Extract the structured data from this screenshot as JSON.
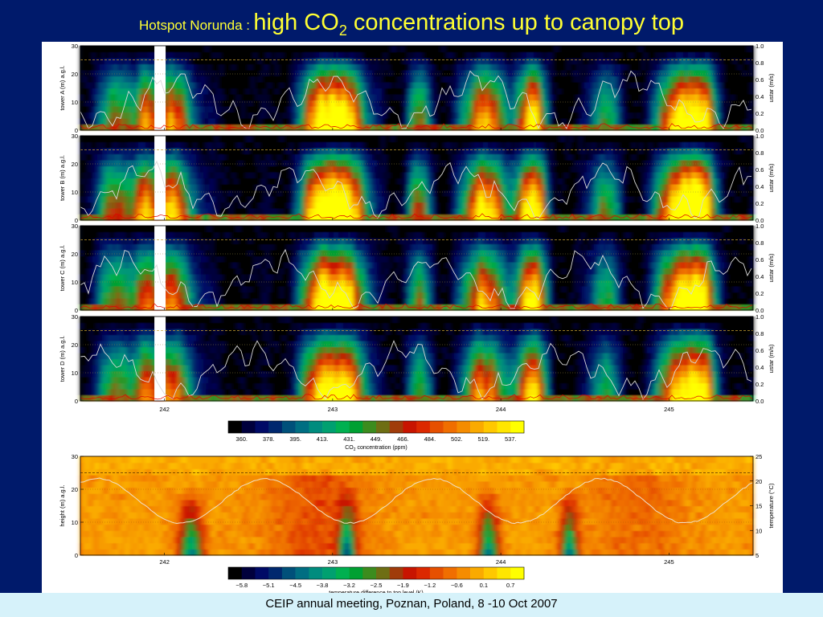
{
  "title": {
    "prefix": "Hotspot Norunda :",
    "main_pre": "high CO",
    "main_sub": "2",
    "main_post": " concentrations up to canopy top"
  },
  "footer": "CEIP annual meeting, Poznan, Poland, 8 -10 Oct 2007",
  "chart_data": [
    {
      "type": "heatmap",
      "title": "",
      "panels": [
        {
          "ylabel": "tower A (m) a.g.l."
        },
        {
          "ylabel": "tower B (m) a.g.l."
        },
        {
          "ylabel": "tower C (m) a.g.l."
        },
        {
          "ylabel": "tower D (m) a.g.l."
        }
      ],
      "xlabel": "",
      "x_ticks": [
        "242",
        "243",
        "244",
        "245"
      ],
      "xlim": [
        241.5,
        245.5
      ],
      "y_ticks": [
        "0",
        "10",
        "20",
        "30"
      ],
      "ylim": [
        0,
        30
      ],
      "y2label": "ustar (m/s)",
      "y2_ticks": [
        "0.0",
        "0.2",
        "0.4",
        "0.6",
        "0.8",
        "1.0"
      ],
      "y2lim": [
        0,
        1
      ],
      "colorbar": {
        "label_pre": "CO",
        "label_sub": "2",
        "label_post": " concentration (ppm)",
        "ticks": [
          "360.",
          "378.",
          "395.",
          "413.",
          "431.",
          "449.",
          "466.",
          "484.",
          "502.",
          "519.",
          "537."
        ],
        "colors": [
          "#000000",
          "#00003c",
          "#000a66",
          "#00286e",
          "#00507a",
          "#006e82",
          "#008c7e",
          "#00a070",
          "#00b050",
          "#00a032",
          "#3c8c1e",
          "#6e6e14",
          "#a03c0a",
          "#c81400",
          "#dc2800",
          "#e65000",
          "#f06e00",
          "#f58c00",
          "#faaa00",
          "#ffc800",
          "#ffe600",
          "#ffff00"
        ]
      },
      "lines": [
        {
          "color": "#d8d8d8"
        },
        {
          "color": "#e00000"
        }
      ]
    },
    {
      "type": "heatmap",
      "title": "",
      "ylabel": "height (m) a.g.l.",
      "xlabel": "",
      "x_ticks": [
        "242",
        "243",
        "244",
        "245"
      ],
      "xlim": [
        241.5,
        245.5
      ],
      "y_ticks": [
        "0",
        "10",
        "20",
        "30"
      ],
      "ylim": [
        0,
        30
      ],
      "y2label": "temperature (°C)",
      "y2_ticks": [
        "5",
        "10",
        "15",
        "20",
        "25"
      ],
      "y2lim": [
        5,
        25
      ],
      "colorbar": {
        "label": "temperature difference to top level (K)",
        "ticks": [
          "−5.8",
          "−5.1",
          "−4.5",
          "−3.8",
          "−3.2",
          "−2.5",
          "−1.9",
          "−1.2",
          "−0.6",
          "0.1",
          "0.7"
        ],
        "colors": [
          "#000000",
          "#00003c",
          "#000a66",
          "#00286e",
          "#00507a",
          "#006e82",
          "#008c7e",
          "#00a070",
          "#00b050",
          "#00a032",
          "#3c8c1e",
          "#6e6e14",
          "#a03c0a",
          "#c81400",
          "#dc2800",
          "#e65000",
          "#f06e00",
          "#f58c00",
          "#faaa00",
          "#ffc800",
          "#ffe600",
          "#ffff00"
        ]
      },
      "lines": [
        {
          "color": "#f0e0c8"
        }
      ]
    }
  ]
}
